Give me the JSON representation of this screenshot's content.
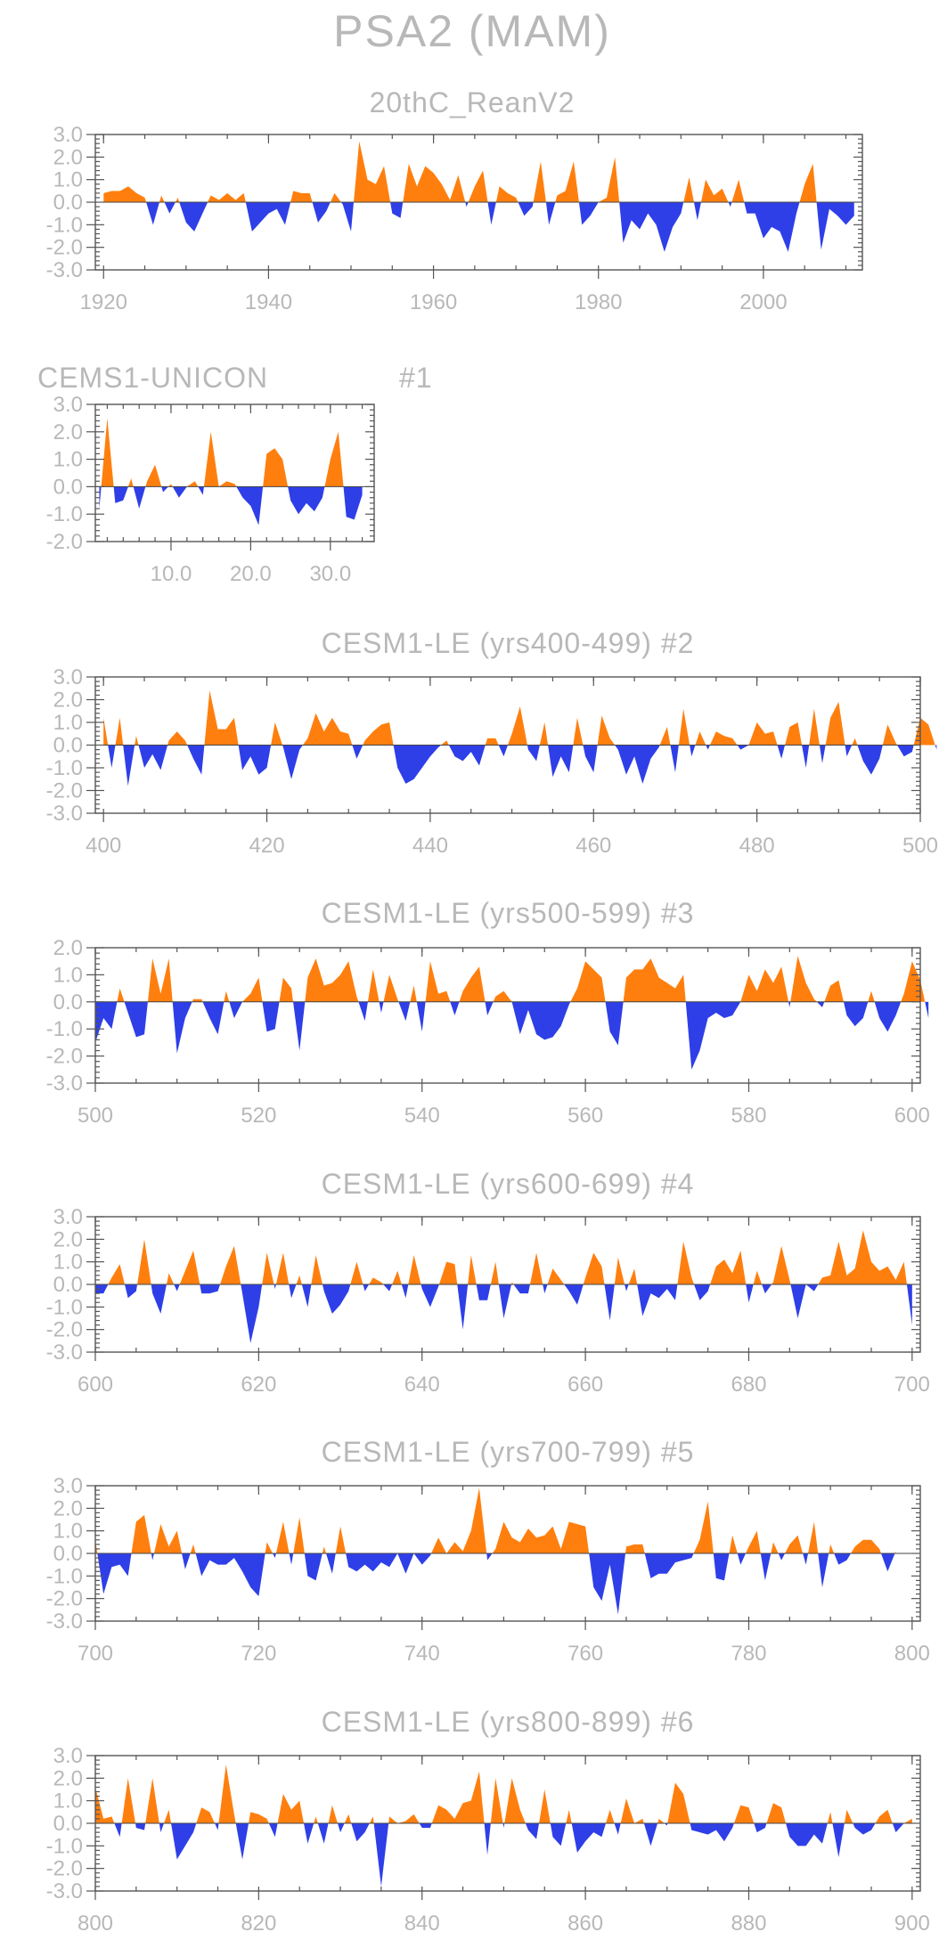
{
  "title": "PSA2 (MAM)",
  "colors": {
    "positive": "#ff7f0e",
    "negative": "#2e3fe8",
    "text": "#b8b8b8",
    "frame": "#555555"
  },
  "chart_data": [
    {
      "type": "area",
      "title": "20thC_ReanV2",
      "x_start": 1920,
      "xlim": [
        1919,
        2012
      ],
      "ylim": [
        -3,
        3
      ],
      "xticks": [
        1920,
        1940,
        1960,
        1980,
        2000
      ],
      "xtick_labels": [
        "1920",
        "1940",
        "1960",
        "1980",
        "2000"
      ],
      "yticks": [
        3,
        2,
        1,
        0,
        -1,
        -2,
        -3
      ],
      "ytick_labels": [
        "3.0",
        "2.0",
        "1.0",
        "0.0",
        "-1.0",
        "-2.0",
        "-3.0"
      ],
      "values": [
        0.4,
        0.5,
        0.5,
        0.7,
        0.4,
        0.2,
        -1.0,
        0.3,
        -0.5,
        0.2,
        -0.9,
        -1.3,
        -0.5,
        0.3,
        0.1,
        0.4,
        0.1,
        0.4,
        -1.3,
        -0.9,
        -0.5,
        -0.3,
        -1.0,
        0.5,
        0.4,
        0.4,
        -0.9,
        -0.4,
        0.4,
        -0.1,
        -1.3,
        2.7,
        1.0,
        0.8,
        1.6,
        -0.5,
        -0.7,
        1.7,
        0.7,
        1.6,
        1.3,
        0.8,
        0.1,
        1.2,
        -0.2,
        0.7,
        1.4,
        -1.0,
        0.7,
        0.4,
        0.2,
        -0.6,
        -0.2,
        1.8,
        -1.0,
        0.3,
        0.5,
        1.8,
        -1.0,
        -0.6,
        0.0,
        0.2,
        2.0,
        -1.8,
        -0.8,
        -1.2,
        -0.5,
        -1.0,
        -2.2,
        -1.1,
        -0.5,
        1.1,
        -0.8,
        1.0,
        0.3,
        0.6,
        -0.2,
        1.0,
        -0.5,
        -0.5,
        -1.6,
        -1.1,
        -1.3,
        -2.2,
        -0.5,
        0.8,
        1.7,
        -2.1,
        -0.3,
        -0.6,
        -1.0,
        -0.6
      ]
    },
    {
      "type": "area",
      "title": "CEMS1-UNICON",
      "label": "#1",
      "x_start": 1,
      "xlim": [
        0.5,
        35.5
      ],
      "ylim": [
        -2,
        3
      ],
      "xticks": [
        10,
        20,
        30
      ],
      "xtick_labels": [
        "10.0",
        "20.0",
        "30.0"
      ],
      "yticks": [
        3,
        2,
        1,
        0,
        -1,
        -2
      ],
      "ytick_labels": [
        "3.0",
        "2.0",
        "1.0",
        "0.0",
        "-1.0",
        "-2.0"
      ],
      "values": [
        -0.8,
        2.5,
        -0.6,
        -0.5,
        0.3,
        -0.8,
        0.2,
        0.8,
        -0.2,
        0.1,
        -0.4,
        0.0,
        0.2,
        -0.3,
        2.0,
        0.0,
        0.2,
        0.1,
        -0.4,
        -0.7,
        -1.4,
        1.2,
        1.4,
        1.0,
        -0.5,
        -1.0,
        -0.6,
        -0.9,
        -0.4,
        1.0,
        2.0,
        -1.1,
        -1.2,
        -0.3
      ]
    },
    {
      "type": "area",
      "title": "CESM1-LE (yrs400-499) #2",
      "x_start": 400,
      "xlim": [
        399,
        500
      ],
      "ylim": [
        -3,
        3
      ],
      "xticks": [
        400,
        420,
        440,
        460,
        480,
        500
      ],
      "xtick_labels": [
        "400",
        "420",
        "440",
        "460",
        "480",
        "500"
      ],
      "yticks": [
        3,
        2,
        1,
        0,
        -1,
        -2,
        -3
      ],
      "ytick_labels": [
        "3.0",
        "2.0",
        "1.0",
        "0.0",
        "-1.0",
        "-2.0",
        "-3.0"
      ],
      "values": [
        1.2,
        -1.0,
        1.2,
        -1.8,
        0.4,
        -1.0,
        -0.4,
        -1.1,
        0.2,
        0.6,
        0.2,
        -0.6,
        -1.3,
        2.4,
        0.7,
        0.7,
        1.2,
        -1.1,
        -0.5,
        -1.3,
        -1.0,
        1.0,
        -0.1,
        -1.5,
        -0.2,
        0.3,
        1.4,
        0.6,
        1.2,
        0.6,
        0.5,
        -0.6,
        0.2,
        0.6,
        0.9,
        1.0,
        -1.0,
        -1.7,
        -1.5,
        -1.0,
        -0.5,
        -0.1,
        0.2,
        -0.5,
        -0.7,
        -0.3,
        -0.9,
        0.3,
        0.3,
        -0.5,
        0.5,
        1.7,
        -0.2,
        -0.7,
        1.0,
        -1.4,
        -0.5,
        -1.2,
        1.2,
        -0.5,
        -1.2,
        1.3,
        0.3,
        -0.2,
        -1.3,
        -0.5,
        -1.7,
        -0.6,
        -0.1,
        0.8,
        -1.2,
        1.6,
        -0.5,
        0.6,
        -0.2,
        0.6,
        0.4,
        0.3,
        -0.2,
        0.0,
        1.0,
        0.5,
        0.6,
        -0.6,
        0.8,
        1.0,
        -1.0,
        1.6,
        -0.8,
        1.2,
        1.9,
        -0.5,
        0.3,
        -0.7,
        -1.3,
        -0.6,
        0.9,
        0.1,
        -0.5,
        -0.3,
        1.2,
        0.9,
        -0.2
      ]
    },
    {
      "type": "area",
      "title": "CESM1-LE (yrs500-599) #3",
      "x_start": 500,
      "xlim": [
        500,
        601
      ],
      "ylim": [
        -3,
        2
      ],
      "xticks": [
        500,
        520,
        540,
        560,
        580,
        600
      ],
      "xtick_labels": [
        "500",
        "520",
        "540",
        "560",
        "580",
        "600"
      ],
      "yticks": [
        2,
        1,
        0,
        -1,
        -2,
        -3
      ],
      "ytick_labels": [
        "2.0",
        "1.0",
        "0.0",
        "-1.0",
        "-2.0",
        "-3.0"
      ],
      "values": [
        -1.5,
        -0.6,
        -1.0,
        0.5,
        -0.4,
        -1.3,
        -1.2,
        1.6,
        0.3,
        1.6,
        -1.9,
        -0.6,
        0.1,
        0.1,
        -0.6,
        -1.2,
        0.4,
        -0.6,
        0.0,
        0.3,
        0.9,
        -1.1,
        -1.0,
        0.9,
        0.5,
        -1.8,
        0.9,
        1.6,
        0.6,
        0.7,
        1.0,
        1.5,
        0.2,
        -0.7,
        1.2,
        -0.4,
        1.0,
        0.1,
        -0.7,
        0.6,
        -1.1,
        1.5,
        0.3,
        0.4,
        -0.5,
        0.4,
        0.9,
        1.3,
        -0.5,
        0.2,
        0.4,
        0.0,
        -1.2,
        -0.3,
        -1.2,
        -1.4,
        -1.3,
        -0.9,
        -0.1,
        0.5,
        1.5,
        1.2,
        0.9,
        -1.1,
        -1.6,
        0.9,
        1.2,
        1.2,
        1.6,
        0.9,
        0.7,
        0.5,
        1.0,
        -2.5,
        -1.8,
        -0.6,
        -0.4,
        -0.6,
        -0.5,
        0.0,
        1.0,
        0.4,
        1.2,
        0.7,
        1.3,
        -0.2,
        1.7,
        0.7,
        0.1,
        -0.2,
        0.6,
        0.8,
        -0.5,
        -0.9,
        -0.6,
        0.4,
        -0.6,
        -1.1,
        -0.5,
        0.3,
        1.5,
        0.8,
        -0.6
      ]
    },
    {
      "type": "area",
      "title": "CESM1-LE (yrs600-699) #4",
      "x_start": 600,
      "xlim": [
        600,
        701
      ],
      "ylim": [
        -3,
        3
      ],
      "xticks": [
        600,
        620,
        640,
        660,
        680,
        700
      ],
      "xtick_labels": [
        "600",
        "620",
        "640",
        "660",
        "680",
        "700"
      ],
      "yticks": [
        3,
        2,
        1,
        0,
        -1,
        -2,
        -3
      ],
      "ytick_labels": [
        "3.0",
        "2.0",
        "1.0",
        "0.0",
        "-1.0",
        "-2.0",
        "-3.0"
      ],
      "values": [
        -0.4,
        -0.4,
        0.3,
        0.9,
        -0.6,
        -0.3,
        2.0,
        -0.4,
        -1.3,
        0.5,
        -0.3,
        0.6,
        1.5,
        -0.4,
        -0.4,
        -0.3,
        0.8,
        1.7,
        -0.4,
        -2.6,
        -1.0,
        1.4,
        -0.2,
        1.4,
        -0.6,
        0.4,
        -1.0,
        1.3,
        -0.3,
        -1.3,
        -0.9,
        -0.3,
        1.0,
        -0.3,
        0.3,
        0.1,
        -0.3,
        0.6,
        -0.6,
        1.3,
        -0.2,
        -1.0,
        -0.1,
        1.0,
        0.9,
        -2.0,
        1.3,
        -0.7,
        -0.7,
        1.0,
        -1.5,
        0.1,
        -0.4,
        -0.4,
        1.4,
        -0.4,
        0.7,
        0.2,
        -0.3,
        -0.9,
        0.3,
        1.4,
        0.8,
        -1.6,
        1.2,
        -0.3,
        0.7,
        -1.4,
        -0.4,
        -0.6,
        -0.2,
        -0.7,
        1.9,
        0.3,
        -0.7,
        -0.3,
        0.8,
        1.1,
        0.5,
        1.5,
        -0.8,
        0.6,
        -0.4,
        0.1,
        1.7,
        0.2,
        -1.5,
        0.0,
        -0.3,
        0.3,
        0.4,
        1.9,
        0.4,
        0.7,
        2.4,
        1.0,
        0.6,
        0.8,
        0.2,
        1.0,
        -1.8
      ]
    },
    {
      "type": "area",
      "title": "CESM1-LE (yrs700-799) #5",
      "x_start": 700,
      "xlim": [
        700,
        801
      ],
      "ylim": [
        -3,
        3
      ],
      "xticks": [
        700,
        720,
        740,
        760,
        780,
        800
      ],
      "xtick_labels": [
        "700",
        "720",
        "740",
        "760",
        "780",
        "800"
      ],
      "yticks": [
        3,
        2,
        1,
        0,
        -1,
        -2,
        -3
      ],
      "ytick_labels": [
        "3.0",
        "2.0",
        "1.0",
        "0.0",
        "-1.0",
        "-2.0",
        "-3.0"
      ],
      "values": [
        0.6,
        -1.8,
        -0.6,
        -0.5,
        -1.0,
        1.4,
        1.7,
        -0.3,
        1.3,
        0.3,
        1.0,
        -0.7,
        0.4,
        -1.0,
        -0.3,
        -0.5,
        -0.5,
        -0.2,
        -0.8,
        -1.5,
        -1.9,
        0.5,
        -0.2,
        1.4,
        -0.5,
        1.6,
        -1.0,
        -1.2,
        0.3,
        -0.9,
        1.2,
        -0.6,
        -0.8,
        -0.5,
        -0.8,
        -0.4,
        -0.6,
        0.0,
        -0.9,
        0.0,
        -0.5,
        -0.1,
        0.7,
        0.0,
        0.5,
        0.1,
        1.0,
        2.9,
        -0.3,
        0.2,
        1.4,
        0.7,
        0.5,
        1.1,
        0.7,
        0.8,
        1.2,
        0.2,
        1.4,
        1.3,
        1.2,
        -1.5,
        -2.1,
        -0.5,
        -2.7,
        0.3,
        0.4,
        0.4,
        -1.1,
        -0.9,
        -0.9,
        -0.4,
        -0.3,
        -0.2,
        0.6,
        2.3,
        -1.1,
        -1.2,
        0.8,
        -0.5,
        0.3,
        1.0,
        -1.2,
        0.5,
        -0.3,
        0.4,
        0.8,
        -0.5,
        1.4,
        -1.5,
        0.4,
        -0.5,
        -0.3,
        0.3,
        0.6,
        0.6,
        0.2,
        -0.8,
        0.1
      ]
    },
    {
      "type": "area",
      "title": "CESM1-LE (yrs800-899) #6",
      "x_start": 800,
      "xlim": [
        800,
        901
      ],
      "ylim": [
        -3,
        3
      ],
      "xticks": [
        800,
        820,
        840,
        860,
        880,
        900
      ],
      "xtick_labels": [
        "800",
        "820",
        "840",
        "860",
        "880",
        "900"
      ],
      "yticks": [
        3,
        2,
        1,
        0,
        -1,
        -2,
        -3
      ],
      "ytick_labels": [
        "3.0",
        "2.0",
        "1.0",
        "0.0",
        "-1.0",
        "-2.0",
        "-3.0"
      ],
      "values": [
        1.6,
        0.2,
        0.3,
        -0.6,
        2.0,
        -0.2,
        -0.3,
        2.0,
        -0.4,
        0.6,
        -1.6,
        -1.0,
        -0.4,
        0.7,
        0.5,
        -0.3,
        2.6,
        0.4,
        -1.6,
        0.5,
        0.4,
        0.2,
        -0.6,
        1.3,
        0.6,
        1.0,
        -0.9,
        0.3,
        -0.9,
        0.8,
        -0.4,
        0.4,
        -0.8,
        -0.4,
        0.3,
        -2.8,
        0.3,
        0.0,
        0.1,
        0.4,
        -0.2,
        -0.2,
        0.8,
        0.6,
        0.2,
        0.9,
        1.0,
        2.3,
        -1.4,
        2.0,
        -0.2,
        2.0,
        0.6,
        -0.3,
        -0.7,
        1.5,
        -0.6,
        -1.0,
        0.6,
        -1.3,
        -0.8,
        -0.4,
        -0.6,
        0.6,
        -0.5,
        1.1,
        0.0,
        0.2,
        -1.0,
        0.2,
        -0.1,
        1.8,
        1.3,
        -0.3,
        -0.4,
        -0.5,
        -0.3,
        -0.8,
        -0.2,
        0.8,
        0.7,
        -0.4,
        -0.2,
        0.9,
        0.7,
        -0.6,
        -1.0,
        -1.0,
        -0.5,
        -0.9,
        0.5,
        -1.5,
        0.6,
        -0.2,
        -0.5,
        -0.3,
        0.3,
        0.6,
        -0.4,
        0.0,
        0.2
      ]
    }
  ]
}
